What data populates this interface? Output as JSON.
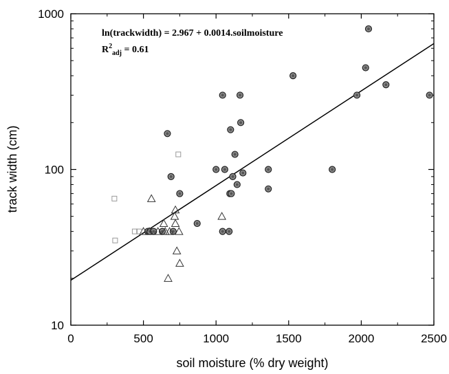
{
  "chart_data": {
    "type": "scatter",
    "title": "",
    "xlabel": "soil moisture (% dry weight)",
    "ylabel": "track width (cm)",
    "xlim": [
      0,
      2500
    ],
    "ylim": [
      10,
      1000
    ],
    "yscale": "log",
    "x_ticks": [
      "0",
      "500",
      "1000",
      "1500",
      "2000",
      "2500"
    ],
    "y_ticks": [
      "10",
      "100",
      "1000"
    ],
    "grid": false,
    "annotation": {
      "equation": "ln(trackwidth) = 2.967 + 0.0014.soilmoisture",
      "r2_prefix": "R",
      "r2_sup": "2",
      "r2_sub": "adj",
      "r2_value": " = 0.61"
    },
    "regression_line": {
      "intercept": 2.967,
      "slope": 0.0014
    },
    "series": [
      {
        "marker": "filled-circle",
        "points": [
          [
            2050,
            800
          ],
          [
            2030,
            450
          ],
          [
            1530,
            400
          ],
          [
            2170,
            350
          ],
          [
            2470,
            300
          ],
          [
            1970,
            300
          ],
          [
            1045,
            300
          ],
          [
            1165,
            300
          ],
          [
            1170,
            200
          ],
          [
            1100,
            180
          ],
          [
            665,
            170
          ],
          [
            1130,
            125
          ],
          [
            1000,
            100
          ],
          [
            1060,
            100
          ],
          [
            1360,
            100
          ],
          [
            1800,
            100
          ],
          [
            1185,
            95
          ],
          [
            690,
            90
          ],
          [
            1115,
            90
          ],
          [
            750,
            70
          ],
          [
            1095,
            70
          ],
          [
            1105,
            70
          ],
          [
            1145,
            80
          ],
          [
            1360,
            75
          ],
          [
            870,
            45
          ],
          [
            530,
            40
          ],
          [
            545,
            40
          ],
          [
            570,
            40
          ],
          [
            630,
            40
          ],
          [
            705,
            40
          ],
          [
            1045,
            40
          ],
          [
            1090,
            40
          ]
        ]
      },
      {
        "marker": "open-triangle",
        "points": [
          [
            555,
            65
          ],
          [
            720,
            55
          ],
          [
            715,
            50
          ],
          [
            1040,
            50
          ],
          [
            720,
            45
          ],
          [
            640,
            45
          ],
          [
            500,
            40
          ],
          [
            540,
            40
          ],
          [
            600,
            40
          ],
          [
            650,
            40
          ],
          [
            680,
            40
          ],
          [
            745,
            40
          ],
          [
            730,
            30
          ],
          [
            750,
            25
          ],
          [
            670,
            20
          ]
        ]
      },
      {
        "marker": "open-square",
        "points": [
          [
            740,
            125
          ],
          [
            300,
            65
          ],
          [
            305,
            35
          ],
          [
            440,
            40
          ],
          [
            470,
            40
          ]
        ]
      }
    ]
  }
}
